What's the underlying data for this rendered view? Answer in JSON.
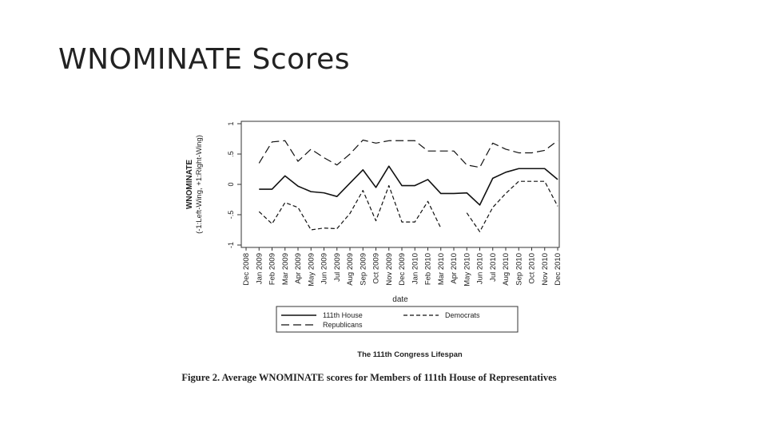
{
  "slide": {
    "title": "WNOMINATE Scores",
    "caption": "Figure 2. Average WNOMINATE scores for Members of 111th House of Representatives"
  },
  "chart_data": {
    "type": "line",
    "title": "",
    "subtitle": "The 111th Congress Lifespan",
    "xlabel": "date",
    "ylabel": "WNOMINATE",
    "ylabel_sub": "(-1:Left-Wing, +1:Right-Wing)",
    "ylim": [
      -1,
      1
    ],
    "yticks": [
      "-1",
      "-.5",
      "0",
      ".5",
      "1"
    ],
    "ytick_values": [
      -1,
      -0.5,
      0,
      0.5,
      1
    ],
    "grid": false,
    "legend_position": "bottom",
    "categories": [
      "Dec 2008",
      "Jan 2009",
      "Feb 2009",
      "Mar 2009",
      "Apr 2009",
      "May 2009",
      "Jun 2009",
      "Jul 2009",
      "Aug 2009",
      "Sep 2009",
      "Oct 2009",
      "Nov 2009",
      "Dec 2009",
      "Jan 2010",
      "Feb 2010",
      "Mar 2010",
      "Apr 2010",
      "May 2010",
      "Jun 2010",
      "Jul 2010",
      "Aug 2010",
      "Sep 2010",
      "Oct 2010",
      "Nov 2010",
      "Dec 2010"
    ],
    "series": [
      {
        "name": "111th House",
        "style": "solid",
        "values": [
          null,
          -0.08,
          -0.08,
          0.14,
          -0.03,
          -0.12,
          -0.14,
          -0.2,
          0.02,
          0.24,
          -0.05,
          0.3,
          -0.02,
          -0.02,
          0.08,
          -0.15,
          -0.15,
          -0.14,
          -0.34,
          0.1,
          0.2,
          0.26,
          0.26,
          0.26,
          0.08
        ]
      },
      {
        "name": "Democrats",
        "style": "dash",
        "values": [
          null,
          -0.45,
          -0.65,
          -0.3,
          -0.38,
          -0.75,
          -0.72,
          -0.73,
          -0.48,
          -0.1,
          -0.6,
          -0.02,
          -0.62,
          -0.62,
          -0.28,
          -0.72,
          null,
          -0.47,
          -0.78,
          -0.38,
          -0.15,
          0.05,
          0.05,
          0.05,
          -0.36
        ]
      },
      {
        "name": "Republicans",
        "style": "longdash",
        "values": [
          null,
          0.35,
          0.7,
          0.72,
          0.38,
          0.58,
          0.44,
          0.32,
          0.5,
          0.73,
          0.68,
          0.72,
          0.72,
          0.72,
          0.55,
          0.55,
          0.55,
          0.32,
          0.28,
          0.68,
          0.58,
          0.52,
          0.52,
          0.56,
          0.72
        ]
      }
    ]
  }
}
